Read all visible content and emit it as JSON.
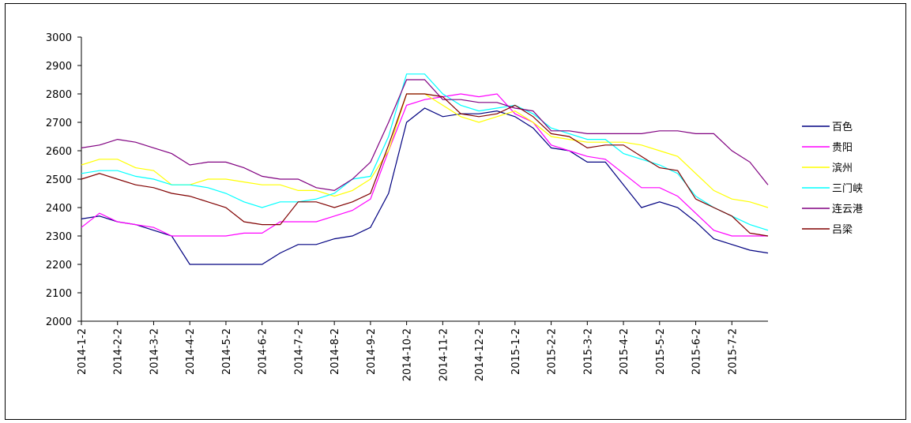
{
  "chart_data": {
    "type": "line",
    "categories": [
      "2014-1-2",
      null,
      "2014-2-2",
      null,
      "2014-3-2",
      null,
      "2014-4-2",
      null,
      "2014-5-2",
      null,
      "2014-6-2",
      null,
      "2014-7-2",
      null,
      "2014-8-2",
      null,
      "2014-9-2",
      null,
      "2014-10-2",
      null,
      "2014-11-2",
      null,
      "2014-12-2",
      null,
      "2015-1-2",
      null,
      "2015-2-2",
      null,
      "2015-3-2",
      null,
      "2015-4-2",
      null,
      "2015-5-2",
      null,
      "2015-6-2",
      null,
      "2015-7-2",
      null,
      null
    ],
    "series": [
      {
        "name": "百色",
        "color": "#000080",
        "values": [
          2360,
          2370,
          2350,
          2340,
          2320,
          2300,
          2200,
          2200,
          2200,
          2200,
          2200,
          2240,
          2270,
          2270,
          2290,
          2300,
          2330,
          2450,
          2700,
          2750,
          2720,
          2730,
          2730,
          2740,
          2720,
          2680,
          2610,
          2600,
          2560,
          2560,
          2480,
          2400,
          2420,
          2400,
          2350,
          2290,
          2270,
          2250,
          2240
        ]
      },
      {
        "name": "贵阳",
        "color": "#ff00ff",
        "values": [
          2330,
          2380,
          2350,
          2340,
          2330,
          2300,
          2300,
          2300,
          2300,
          2310,
          2310,
          2350,
          2350,
          2350,
          2370,
          2390,
          2430,
          2600,
          2760,
          2780,
          2790,
          2800,
          2790,
          2800,
          2730,
          2700,
          2620,
          2600,
          2580,
          2570,
          2520,
          2470,
          2470,
          2440,
          2380,
          2320,
          2300,
          2300,
          2300
        ]
      },
      {
        "name": "滨州",
        "color": "#ffff00",
        "values": [
          2550,
          2570,
          2570,
          2540,
          2530,
          2480,
          2480,
          2500,
          2500,
          2490,
          2480,
          2480,
          2460,
          2460,
          2440,
          2460,
          2500,
          2600,
          2800,
          2800,
          2760,
          2720,
          2700,
          2720,
          2740,
          2700,
          2650,
          2640,
          2630,
          2630,
          2630,
          2620,
          2600,
          2580,
          2520,
          2460,
          2430,
          2420,
          2400
        ]
      },
      {
        "name": "三门峡",
        "color": "#00ffff",
        "values": [
          2520,
          2530,
          2530,
          2510,
          2500,
          2480,
          2480,
          2470,
          2450,
          2420,
          2400,
          2420,
          2420,
          2430,
          2450,
          2500,
          2510,
          2650,
          2870,
          2870,
          2800,
          2760,
          2740,
          2750,
          2760,
          2730,
          2680,
          2660,
          2640,
          2640,
          2590,
          2570,
          2550,
          2520,
          2440,
          2400,
          2370,
          2340,
          2320
        ]
      },
      {
        "name": "连云港",
        "color": "#800080",
        "values": [
          2610,
          2620,
          2640,
          2630,
          2610,
          2590,
          2550,
          2560,
          2560,
          2540,
          2510,
          2500,
          2500,
          2470,
          2460,
          2500,
          2560,
          2700,
          2850,
          2850,
          2780,
          2780,
          2770,
          2770,
          2750,
          2740,
          2670,
          2670,
          2660,
          2660,
          2660,
          2660,
          2670,
          2670,
          2660,
          2660,
          2600,
          2560,
          2480
        ]
      },
      {
        "name": "吕梁",
        "color": "#800000",
        "values": [
          2500,
          2520,
          2500,
          2480,
          2470,
          2450,
          2440,
          2420,
          2400,
          2350,
          2340,
          2340,
          2420,
          2420,
          2400,
          2420,
          2450,
          2620,
          2800,
          2800,
          2790,
          2730,
          2720,
          2730,
          2760,
          2720,
          2660,
          2650,
          2610,
          2620,
          2620,
          2580,
          2540,
          2530,
          2430,
          2400,
          2370,
          2310,
          2300
        ]
      }
    ],
    "ylim": [
      2000,
      3000
    ],
    "yticks": [
      2000,
      2100,
      2200,
      2300,
      2400,
      2500,
      2600,
      2700,
      2800,
      2900,
      3000
    ],
    "grid": false,
    "legend": "right"
  }
}
